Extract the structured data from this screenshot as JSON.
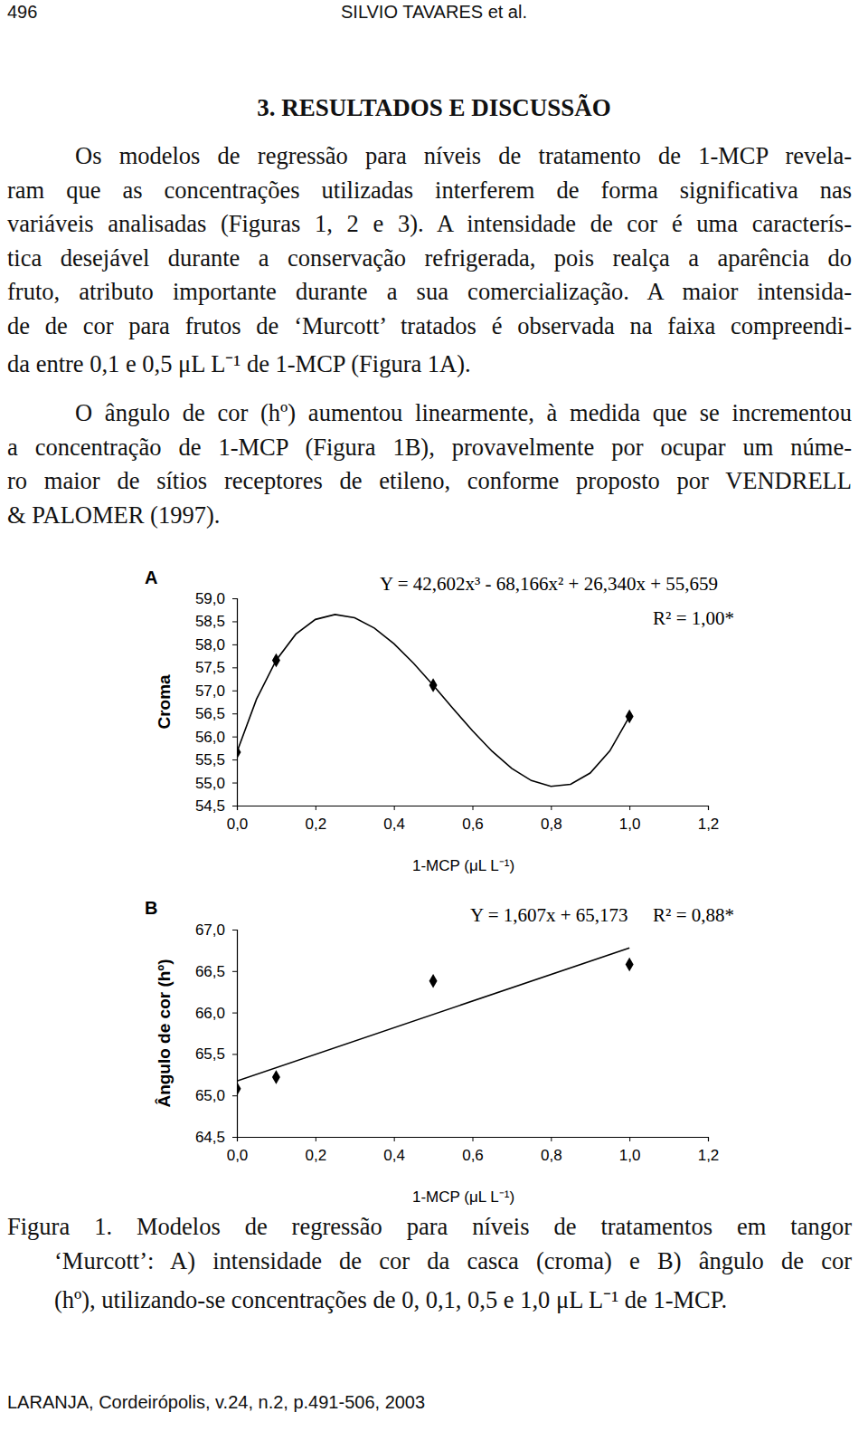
{
  "header": {
    "page": "496",
    "authors": "SILVIO TAVARES et al."
  },
  "section_title": "3. RESULTADOS E DISCUSSÃO",
  "paragraphs": [
    [
      "Os modelos de regressão para níveis de tratamento de 1-MCP revela-",
      "ram que as concentrações utilizadas interferem de forma significativa nas",
      "variáveis analisadas (Figuras 1, 2 e 3). A intensidade de cor é uma caracterís-",
      "tica desejável durante a conservação refrigerada, pois realça a aparência do",
      "fruto, atributo importante durante a sua comercialização. A maior intensida-",
      "de de cor para frutos de ‘Murcott’ tratados é observada na faixa compreendi-",
      "da entre 0,1 e 0,5 μL L⁻¹ de 1-MCP (Figura 1A)."
    ],
    [
      "O ângulo de cor (hº) aumentou linearmente, à medida que se incrementou",
      "a concentração de 1-MCP (Figura 1B), provavelmente por ocupar um núme-",
      "ro maior de sítios receptores de etileno, conforme proposto por VENDRELL",
      "& PALOMER (1997)."
    ]
  ],
  "chart_data": [
    {
      "type": "scatter",
      "title": "A",
      "y_label": "Croma",
      "x_label": "1-MCP (μL L⁻¹)",
      "annotations": [
        "Y = 42,602x³ - 68,166x² + 26,340x + 55,659",
        "R² = 1,00*"
      ],
      "series": [
        {
          "type": "scatter",
          "marker": "diamond",
          "color": "#000000",
          "x": [
            0,
            0.1,
            0.5,
            1.0
          ],
          "values": [
            55.659,
            57.654,
            57.113,
            56.435
          ]
        },
        {
          "type": "line",
          "line_style": "solid",
          "color": "#000000",
          "x": [
            0,
            0.05,
            0.1,
            0.15,
            0.2,
            0.25,
            0.3,
            0.35,
            0.4,
            0.45,
            0.5,
            0.55,
            0.6,
            0.65,
            0.7,
            0.75,
            0.8,
            0.85,
            0.9,
            0.95,
            1.0
          ],
          "values": [
            55.659,
            56.811,
            57.654,
            58.22,
            58.541,
            58.649,
            58.576,
            58.354,
            58.015,
            57.59,
            57.113,
            56.614,
            56.125,
            55.68,
            55.308,
            55.043,
            54.917,
            54.961,
            55.207,
            55.688,
            56.435
          ]
        }
      ],
      "xlim": [
        0,
        1.2
      ],
      "xticks": [
        {
          "value": 0,
          "label": "0,0"
        },
        {
          "value": 0.2,
          "label": "0,2"
        },
        {
          "value": 0.4,
          "label": "0,4"
        },
        {
          "value": 0.6,
          "label": "0,6"
        },
        {
          "value": 0.8,
          "label": "0,8"
        },
        {
          "value": 1.0,
          "label": "1,0"
        },
        {
          "value": 1.2,
          "label": "1,2"
        }
      ],
      "ylim": [
        54.5,
        59.0
      ],
      "yticks": [
        {
          "value": 54.5,
          "label": "54,5"
        },
        {
          "value": 55.0,
          "label": "55,0"
        },
        {
          "value": 55.5,
          "label": "55,5"
        },
        {
          "value": 56.0,
          "label": "56,0"
        },
        {
          "value": 56.5,
          "label": "56,5"
        },
        {
          "value": 57.0,
          "label": "57,0"
        },
        {
          "value": 57.5,
          "label": "57,5"
        },
        {
          "value": 58.0,
          "label": "58,0"
        },
        {
          "value": 58.5,
          "label": "58,5"
        },
        {
          "value": 59.0,
          "label": "59,0"
        }
      ],
      "grid": false
    },
    {
      "type": "scatter",
      "title": "B",
      "y_label": "Ângulo de cor (hº)",
      "x_label": "1-MCP (μL L⁻¹)",
      "annotations": [
        "Y = 1,607x + 65,173",
        "R² = 0,88*"
      ],
      "series": [
        {
          "type": "scatter",
          "marker": "diamond",
          "color": "#000000",
          "x": [
            0,
            0.1,
            0.5,
            1.0
          ],
          "values": [
            65.08,
            65.22,
            66.38,
            66.58
          ]
        },
        {
          "type": "line",
          "line_style": "solid",
          "color": "#000000",
          "x": [
            0,
            1.0
          ],
          "values": [
            65.173,
            66.78
          ]
        }
      ],
      "xlim": [
        0,
        1.2
      ],
      "xticks": [
        {
          "value": 0,
          "label": "0,0"
        },
        {
          "value": 0.2,
          "label": "0,2"
        },
        {
          "value": 0.4,
          "label": "0,4"
        },
        {
          "value": 0.6,
          "label": "0,6"
        },
        {
          "value": 0.8,
          "label": "0,8"
        },
        {
          "value": 1.0,
          "label": "1,0"
        },
        {
          "value": 1.2,
          "label": "1,2"
        }
      ],
      "ylim": [
        64.5,
        67.0
      ],
      "yticks": [
        {
          "value": 64.5,
          "label": "64,5"
        },
        {
          "value": 65.0,
          "label": "65,0"
        },
        {
          "value": 65.5,
          "label": "65,5"
        },
        {
          "value": 66.0,
          "label": "66,0"
        },
        {
          "value": 66.5,
          "label": "66,5"
        },
        {
          "value": 67.0,
          "label": "67,0"
        }
      ],
      "grid": false
    }
  ],
  "caption": [
    "Figura 1. Modelos de regressão para níveis de tratamentos em tangor",
    "‘Murcott’: A) intensidade de cor da casca (croma) e B) ângulo de cor",
    "(hº), utilizando-se concentrações de 0, 0,1, 0,5 e 1,0 μL L⁻¹ de 1-MCP."
  ],
  "footer": "LARANJA, Cordeirópolis, v.24, n.2, p.491-506, 2003"
}
